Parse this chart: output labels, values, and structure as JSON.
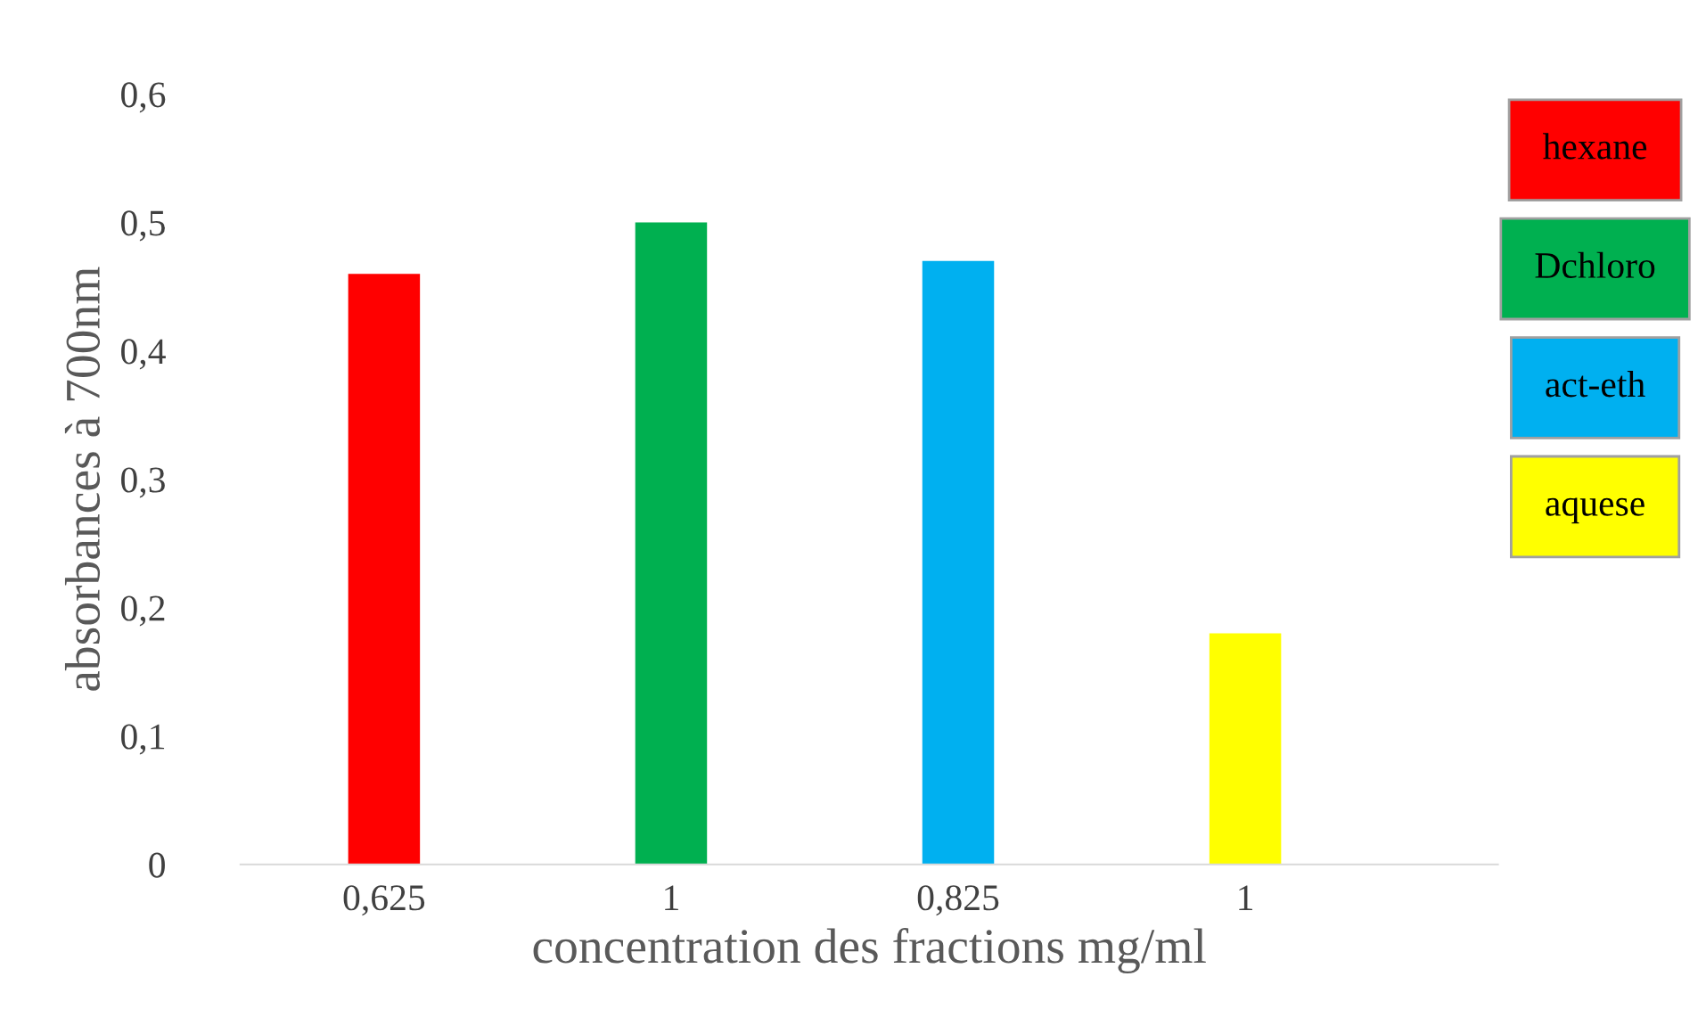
{
  "chart_data": {
    "type": "bar",
    "xlabel": "concentration des fractions mg/ml",
    "ylabel": "absorbances à 700nm",
    "categories": [
      "0,625",
      "1",
      "0,825",
      "1"
    ],
    "series": [
      {
        "name": "hexane",
        "color": "#ff0000",
        "values": [
          0.46,
          null,
          null,
          null
        ]
      },
      {
        "name": "Dchloro",
        "color": "#00b050",
        "values": [
          null,
          0.5,
          null,
          null
        ]
      },
      {
        "name": "act-eth",
        "color": "#00b0f0",
        "values": [
          null,
          null,
          0.47,
          null
        ]
      },
      {
        "name": "aquese",
        "color": "#ffff00",
        "values": [
          null,
          null,
          null,
          0.18
        ]
      }
    ],
    "ylim": [
      0,
      0.6
    ],
    "yticks": [
      {
        "value": 0,
        "label": "0"
      },
      {
        "value": 0.1,
        "label": "0,1"
      },
      {
        "value": 0.2,
        "label": "0,2"
      },
      {
        "value": 0.3,
        "label": "0,3"
      },
      {
        "value": 0.4,
        "label": "0,4"
      },
      {
        "value": 0.5,
        "label": "0,5"
      },
      {
        "value": 0.6,
        "label": "0,6"
      }
    ],
    "grid": false,
    "legend": "top right"
  }
}
